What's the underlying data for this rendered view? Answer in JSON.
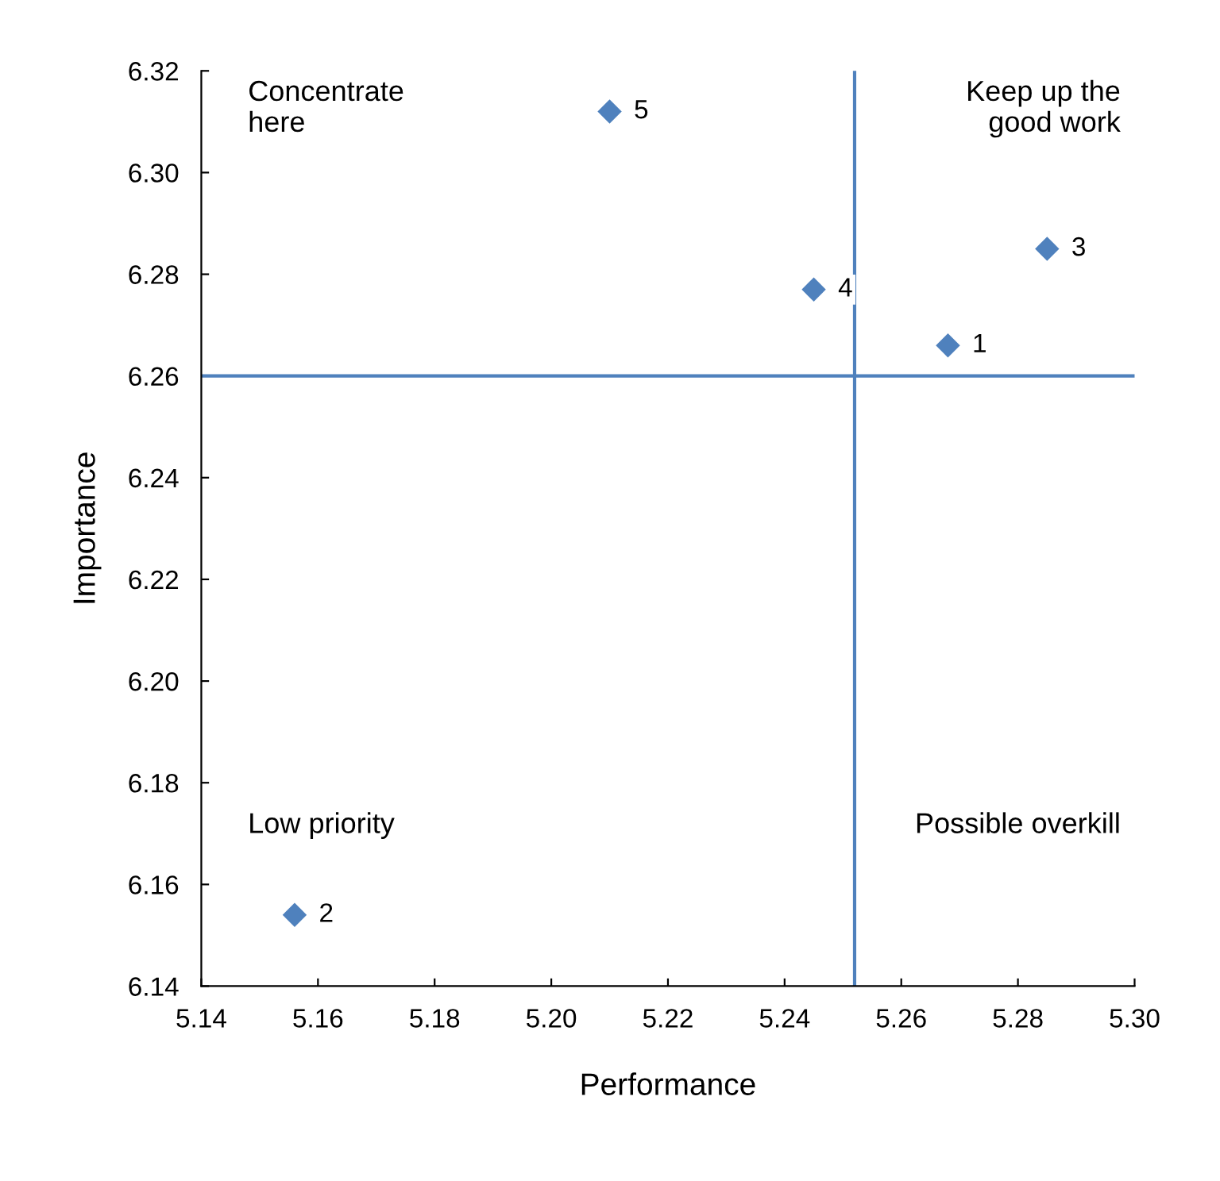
{
  "chart_data": {
    "type": "scatter",
    "xlabel": "Performance",
    "ylabel": "Importance",
    "series": [
      {
        "color": "#4f81bd",
        "x": [
          5.268,
          5.156,
          5.285,
          5.245,
          5.21
        ],
        "values": [
          6.266,
          6.154,
          6.285,
          6.277,
          6.312
        ]
      }
    ],
    "marker": "diamond",
    "grid": false,
    "xlim": [
      5.14,
      5.3
    ],
    "xticks": [
      5.14,
      5.16,
      5.18,
      {
        "value": 5.2,
        "label": "5.20"
      },
      5.22,
      5.24,
      5.26,
      5.28,
      {
        "value": 5.3,
        "label": "5.30"
      }
    ],
    "ylim": [
      6.14,
      6.32
    ],
    "yticks": [
      6.14,
      6.16,
      6.18,
      {
        "value": 6.2,
        "label": "6.20"
      },
      6.22,
      6.24,
      6.26,
      6.28,
      {
        "value": 6.3,
        "label": "6.30"
      },
      6.32
    ],
    "ref_lines": [
      {
        "axis": "x",
        "value": 5.252,
        "color": "#4f81bd"
      },
      {
        "axis": "y",
        "value": 6.26,
        "color": "#4f81bd"
      }
    ],
    "annotations": [
      "Concentrate\nhere",
      "Keep up the\ngood work",
      "Low priority",
      "Possible overkill",
      {
        "text": "1",
        "x": 5.268,
        "y": 6.266
      },
      {
        "text": "2",
        "x": 5.156,
        "y": 6.154
      },
      {
        "text": "3",
        "x": 5.285,
        "y": 6.285
      },
      {
        "text": "4",
        "x": 5.245,
        "y": 6.277
      },
      {
        "text": "5",
        "x": 5.21,
        "y": 6.312
      }
    ]
  }
}
